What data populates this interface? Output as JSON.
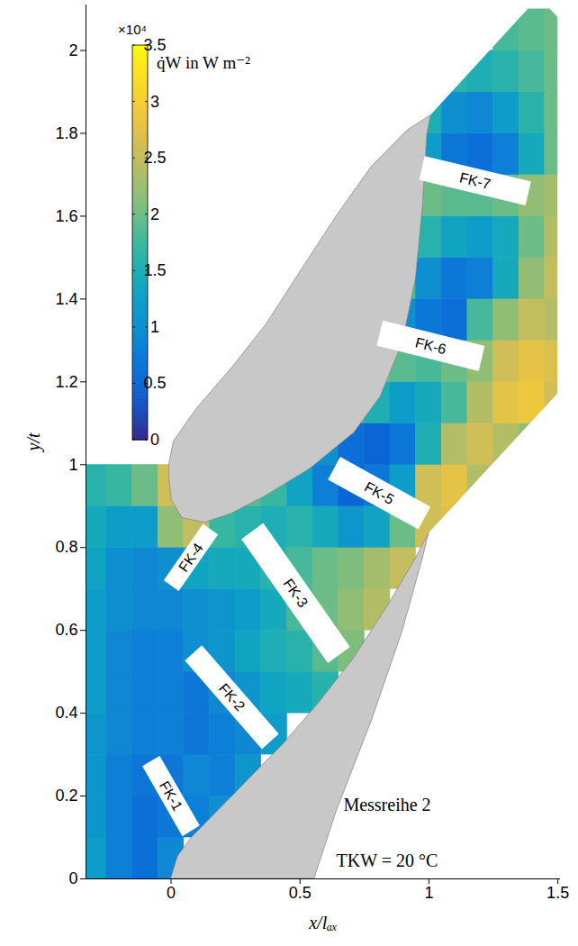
{
  "chart_data": {
    "type": "heatmap",
    "x_label": "x/lₐₓ",
    "y_label": "y/t",
    "xlim": [
      -0.33,
      1.51
    ],
    "ylim": [
      0,
      2.11
    ],
    "xticks": [
      0,
      0.5,
      1,
      1.5
    ],
    "yticks": [
      0,
      0.2,
      0.4,
      0.6,
      0.8,
      1,
      1.2,
      1.4,
      1.6,
      1.8,
      2
    ],
    "heatmap": {
      "x": [
        -0.3,
        -0.2,
        -0.1,
        0,
        0.1,
        0.2,
        0.3,
        0.4,
        0.5,
        0.6,
        0.7,
        0.8,
        0.9,
        1,
        1.1,
        1.2,
        1.3,
        1.4,
        1.5
      ],
      "y": [
        0.05,
        0.15,
        0.25,
        0.35,
        0.45,
        0.55,
        0.65,
        0.75,
        0.85,
        0.95,
        1.05,
        1.15,
        1.25,
        1.35,
        1.45,
        1.55,
        1.65,
        1.75,
        1.85,
        1.95,
        2.05
      ],
      "values": [
        [
          1.2,
          0.8,
          0.6,
          0.9,
          null,
          null,
          null,
          null,
          null,
          null,
          null,
          null,
          null,
          null,
          null,
          null,
          null,
          null,
          null
        ],
        [
          1.1,
          0.8,
          0.6,
          0.7,
          0.8,
          1.0,
          null,
          null,
          null,
          null,
          null,
          null,
          null,
          null,
          null,
          null,
          null,
          null,
          null
        ],
        [
          1.1,
          0.8,
          0.7,
          0.7,
          0.9,
          0.8,
          1.1,
          null,
          null,
          null,
          null,
          null,
          null,
          null,
          null,
          null,
          null,
          null,
          null
        ],
        [
          1.1,
          0.9,
          0.8,
          0.8,
          0.7,
          0.8,
          0.9,
          1.2,
          null,
          null,
          null,
          null,
          null,
          null,
          null,
          null,
          null,
          null,
          null
        ],
        [
          1.2,
          0.9,
          0.8,
          0.8,
          0.7,
          0.9,
          1.1,
          1.3,
          1.4,
          1.6,
          null,
          null,
          null,
          null,
          null,
          null,
          null,
          null,
          null
        ],
        [
          1.2,
          0.9,
          0.8,
          0.8,
          1.0,
          1.1,
          1.3,
          1.5,
          1.6,
          1.9,
          2.1,
          null,
          null,
          null,
          null,
          null,
          null,
          null,
          null
        ],
        [
          1.2,
          1.0,
          0.9,
          0.9,
          1.0,
          1.1,
          1.2,
          1.4,
          1.8,
          2.0,
          2.2,
          2.4,
          null,
          null,
          null,
          null,
          null,
          null,
          null
        ],
        [
          1.3,
          1.0,
          0.9,
          1.0,
          1.3,
          1.4,
          1.4,
          1.6,
          1.8,
          2.0,
          2.1,
          2.3,
          2.5,
          null,
          null,
          null,
          null,
          null,
          null
        ],
        [
          1.4,
          1.2,
          1.2,
          2.2,
          2.5,
          1.7,
          1.6,
          1.5,
          1.6,
          1.4,
          1.1,
          1.3,
          2.0,
          2.6,
          2.7,
          null,
          null,
          null,
          null
        ],
        [
          1.6,
          1.7,
          2.0,
          2.6,
          null,
          null,
          1.9,
          1.7,
          1.3,
          0.8,
          0.5,
          0.7,
          1.2,
          2.6,
          2.8,
          2.4,
          null,
          null,
          null
        ],
        [
          null,
          null,
          null,
          null,
          null,
          null,
          null,
          null,
          1.6,
          1.0,
          0.6,
          0.5,
          0.7,
          1.5,
          2.4,
          2.6,
          2.4,
          2.2,
          null
        ],
        [
          null,
          null,
          null,
          null,
          null,
          null,
          null,
          null,
          null,
          null,
          1.8,
          1.5,
          1.2,
          1.4,
          1.8,
          2.4,
          2.8,
          2.9,
          2.6
        ],
        [
          null,
          null,
          null,
          null,
          null,
          null,
          null,
          null,
          null,
          null,
          null,
          2.0,
          1.9,
          1.8,
          2.0,
          2.2,
          2.6,
          2.8,
          2.7
        ],
        [
          null,
          null,
          null,
          null,
          null,
          null,
          null,
          null,
          null,
          null,
          null,
          null,
          1.0,
          0.7,
          0.6,
          1.8,
          2.2,
          2.5,
          2.4
        ],
        [
          null,
          null,
          null,
          null,
          null,
          null,
          null,
          null,
          null,
          null,
          null,
          null,
          1.8,
          1.0,
          0.7,
          0.8,
          1.4,
          2.2,
          2.5
        ],
        [
          null,
          null,
          null,
          null,
          null,
          null,
          null,
          null,
          null,
          null,
          null,
          null,
          null,
          1.6,
          1.3,
          1.2,
          1.4,
          2.0,
          2.4
        ],
        [
          null,
          null,
          null,
          null,
          null,
          null,
          null,
          null,
          null,
          null,
          null,
          null,
          null,
          2.0,
          1.9,
          1.9,
          2.0,
          2.2,
          2.3
        ],
        [
          null,
          null,
          null,
          null,
          null,
          null,
          null,
          null,
          null,
          null,
          null,
          null,
          null,
          1.2,
          0.7,
          0.6,
          0.8,
          1.4,
          2.0
        ],
        [
          null,
          null,
          null,
          null,
          null,
          null,
          null,
          null,
          null,
          null,
          null,
          null,
          null,
          1.5,
          1.0,
          0.9,
          1.2,
          1.6,
          2.0
        ],
        [
          null,
          null,
          null,
          null,
          null,
          null,
          null,
          null,
          null,
          null,
          null,
          null,
          null,
          null,
          1.6,
          1.5,
          1.6,
          1.8,
          2.0
        ],
        [
          null,
          null,
          null,
          null,
          null,
          null,
          null,
          null,
          null,
          null,
          null,
          null,
          null,
          null,
          null,
          null,
          1.8,
          1.9,
          2.0
        ]
      ]
    },
    "colorbar": {
      "label": "q̇W in W m⁻²",
      "multiplier": "×10⁴",
      "range": [
        0,
        3.5
      ],
      "ticks": [
        0,
        0.5,
        1,
        1.5,
        2,
        2.5,
        3,
        3.5
      ]
    },
    "domain": [
      [
        -0.33,
        0
      ],
      [
        0,
        0
      ],
      [
        0.027,
        0.054
      ],
      [
        0.078,
        0.098
      ],
      [
        0.164,
        0.152
      ],
      [
        0.3,
        0.239
      ],
      [
        0.437,
        0.326
      ],
      [
        0.573,
        0.424
      ],
      [
        0.71,
        0.533
      ],
      [
        0.846,
        0.664
      ],
      [
        0.949,
        0.773
      ],
      [
        1.0,
        0.834
      ],
      [
        1.5,
        1.171
      ],
      [
        1.5,
        2.08
      ],
      [
        1.47,
        2.1
      ],
      [
        1.386,
        2.1
      ],
      [
        1.007,
        1.843
      ],
      [
        0.993,
        1.795
      ],
      [
        0.976,
        1.621
      ],
      [
        0.949,
        1.447
      ],
      [
        0.898,
        1.295
      ],
      [
        0.812,
        1.164
      ],
      [
        0.71,
        1.077
      ],
      [
        0.539,
        0.99
      ],
      [
        0.369,
        0.925
      ],
      [
        0.232,
        0.881
      ],
      [
        0.13,
        0.86
      ],
      [
        0.044,
        0.871
      ],
      [
        0.003,
        0.914
      ],
      [
        -0.007,
        0.968
      ],
      [
        -0.007,
        1.0
      ],
      [
        -0.33,
        1.0
      ]
    ],
    "blades": [
      [
        [
          -0.007,
          1.0
        ],
        [
          -0.007,
          0.968
        ],
        [
          0.003,
          0.914
        ],
        [
          0.044,
          0.871
        ],
        [
          0.13,
          0.86
        ],
        [
          0.232,
          0.881
        ],
        [
          0.369,
          0.925
        ],
        [
          0.539,
          0.99
        ],
        [
          0.71,
          1.077
        ],
        [
          0.812,
          1.164
        ],
        [
          0.898,
          1.295
        ],
        [
          0.949,
          1.447
        ],
        [
          0.976,
          1.621
        ],
        [
          0.993,
          1.795
        ],
        [
          1.007,
          1.843
        ],
        [
          0.915,
          1.806
        ],
        [
          0.778,
          1.719
        ],
        [
          0.642,
          1.6
        ],
        [
          0.505,
          1.469
        ],
        [
          0.369,
          1.338
        ],
        [
          0.232,
          1.23
        ],
        [
          0.096,
          1.132
        ],
        [
          0.01,
          1.055
        ]
      ],
      [
        [
          0,
          0
        ],
        [
          0.027,
          0.054
        ],
        [
          0.078,
          0.098
        ],
        [
          0.164,
          0.152
        ],
        [
          0.3,
          0.239
        ],
        [
          0.437,
          0.326
        ],
        [
          0.573,
          0.424
        ],
        [
          0.71,
          0.533
        ],
        [
          0.846,
          0.664
        ],
        [
          0.949,
          0.773
        ],
        [
          1.0,
          0.834
        ],
        [
          0.976,
          0.773
        ],
        [
          0.898,
          0.598
        ],
        [
          0.778,
          0.381
        ],
        [
          0.642,
          0.163
        ],
        [
          0.556,
          0
        ]
      ]
    ],
    "cooling_rows": [
      {
        "label": "FK-1",
        "corners": [
          [
            -0.108,
            0.271
          ],
          [
            -0.043,
            0.295
          ],
          [
            0.111,
            0.128
          ],
          [
            0.046,
            0.103
          ]
        ]
      },
      {
        "label": "FK-2",
        "corners": [
          [
            0.057,
            0.526
          ],
          [
            0.121,
            0.562
          ],
          [
            0.418,
            0.349
          ],
          [
            0.354,
            0.313
          ]
        ]
      },
      {
        "label": "FK-3",
        "corners": [
          [
            0.276,
            0.819
          ],
          [
            0.359,
            0.857
          ],
          [
            0.694,
            0.559
          ],
          [
            0.61,
            0.521
          ]
        ]
      },
      {
        "label": "FK-4",
        "corners": [
          [
            -0.025,
            0.72
          ],
          [
            0.031,
            0.695
          ],
          [
            0.182,
            0.83
          ],
          [
            0.126,
            0.855
          ]
        ]
      },
      {
        "label": "FK-5",
        "corners": [
          [
            0.658,
            1.017
          ],
          [
            0.612,
            0.963
          ],
          [
            0.96,
            0.844
          ],
          [
            1.006,
            0.897
          ]
        ]
      },
      {
        "label": "FK-6",
        "corners": [
          [
            0.824,
            1.346
          ],
          [
            0.801,
            1.287
          ],
          [
            1.194,
            1.226
          ],
          [
            1.216,
            1.285
          ]
        ]
      },
      {
        "label": "FK-7",
        "corners": [
          [
            0.986,
            1.743
          ],
          [
            0.966,
            1.687
          ],
          [
            1.375,
            1.626
          ],
          [
            1.396,
            1.682
          ]
        ]
      }
    ],
    "annotations": [
      "Messreihe 2",
      "TKW = 20 °C"
    ]
  }
}
